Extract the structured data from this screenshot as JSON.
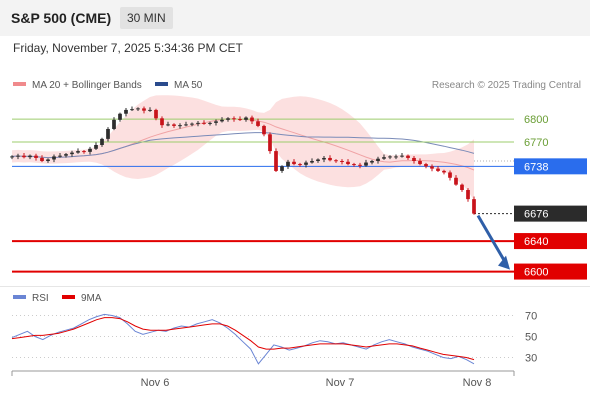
{
  "header": {
    "ticker": "S&P 500 (CME)",
    "interval": "30 MIN"
  },
  "datetime": "Friday, November 7, 2025 5:34:36 PM CET",
  "legend": {
    "bb_label": "MA 20 + Bollinger Bands",
    "ma50_label": "MA 50",
    "rsi_label": "RSI",
    "rsi_ma_label": "9MA",
    "copyright": "Research © 2025 Trading Central"
  },
  "colors": {
    "up": "#2e2e2e",
    "down": "#c8131b",
    "band": "#fbd5d6",
    "ma20": "#f0a3a5",
    "ma50": "#7a8bb8",
    "resistance": "#9ccc6c",
    "pivot": "#2a6ded",
    "support": "#e10000",
    "last": "#2b2b2b",
    "rsi": "#6a85d4",
    "rsi_ma": "#e10000",
    "arrow": "#2f5fa8"
  },
  "chart_data": [
    {
      "type": "line",
      "title": "",
      "x_ticks": [
        "Nov 6",
        "Nov 7",
        "Nov 8"
      ],
      "ylim": [
        6585,
        6825
      ],
      "close_series": [
        6751,
        6752,
        6750,
        6752,
        6749,
        6745,
        6747,
        6751,
        6752,
        6754,
        6756,
        6758,
        6757,
        6761,
        6766,
        6774,
        6787,
        6799,
        6807,
        6812,
        6813,
        6814,
        6811,
        6812,
        6801,
        6792,
        6793,
        6791,
        6792,
        6793,
        6794,
        6795,
        6794,
        6795,
        6797,
        6799,
        6801,
        6800,
        6799,
        6802,
        6797,
        6791,
        6780,
        6758,
        6732,
        6738,
        6744,
        6741,
        6740,
        6743,
        6745,
        6747,
        6749,
        6746,
        6745,
        6744,
        6741,
        6740,
        6739,
        6743,
        6745,
        6748,
        6750,
        6751,
        6751,
        6752,
        6749,
        6745,
        6741,
        6738,
        6735,
        6732,
        6730,
        6723,
        6714,
        6707,
        6695,
        6676
      ],
      "reference_levels": [
        {
          "label": "6800",
          "value": 6800,
          "kind": "resistance"
        },
        {
          "label": "6770",
          "value": 6770,
          "kind": "resistance"
        },
        {
          "label": "6738",
          "value": 6738,
          "kind": "pivot"
        },
        {
          "label": "6676",
          "value": 6676,
          "kind": "last"
        },
        {
          "label": "6640",
          "value": 6640,
          "kind": "support"
        },
        {
          "label": "6600",
          "value": 6600,
          "kind": "support"
        }
      ],
      "series": [
        {
          "name": "MA 20 + Bollinger Bands"
        },
        {
          "name": "MA 50"
        }
      ],
      "forecast_target": 6600
    },
    {
      "type": "line",
      "y_ticks": [
        "70",
        "50",
        "30"
      ],
      "ylim": [
        20,
        80
      ],
      "series": [
        {
          "name": "RSI",
          "values": [
            49,
            52,
            55,
            50,
            47,
            51,
            54,
            56,
            58,
            62,
            66,
            69,
            71,
            70,
            68,
            62,
            55,
            52,
            54,
            56,
            55,
            58,
            60,
            59,
            62,
            64,
            66,
            63,
            58,
            52,
            45,
            38,
            24,
            33,
            42,
            40,
            37,
            39,
            41,
            44,
            46,
            45,
            43,
            44,
            42,
            40,
            38,
            42,
            45,
            47,
            45,
            43,
            40,
            38,
            36,
            33,
            30,
            29,
            31,
            28,
            24
          ]
        },
        {
          "name": "9MA",
          "values": [
            48,
            49,
            50,
            51,
            51,
            52,
            53,
            55,
            57,
            60,
            63,
            66,
            68,
            68,
            67,
            64,
            60,
            57,
            56,
            56,
            56,
            57,
            58,
            59,
            60,
            61,
            62,
            62,
            60,
            56,
            51,
            46,
            40,
            38,
            38,
            39,
            39,
            40,
            41,
            42,
            43,
            43,
            43,
            43,
            42,
            41,
            40,
            41,
            42,
            43,
            43,
            42,
            41,
            39,
            37,
            35,
            33,
            32,
            31,
            30,
            28
          ]
        }
      ]
    }
  ]
}
